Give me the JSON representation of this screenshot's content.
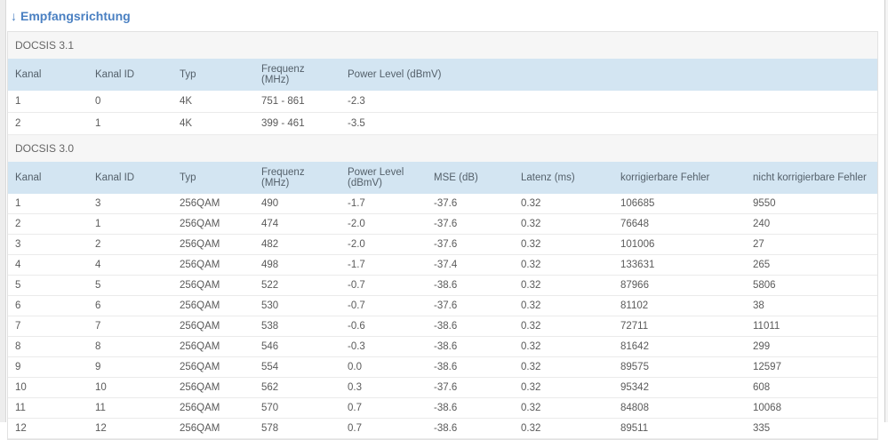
{
  "page": {
    "title_arrow": "↓",
    "title_text": "Empfangsrichtung"
  },
  "colors": {
    "accent_blue": "#4a80c2",
    "table_header_bg": "#d3e5f2",
    "section_label_bg": "#f6f6f6"
  },
  "docsis31": {
    "section_label": "DOCSIS 3.1",
    "columns": [
      "Kanal",
      "Kanal ID",
      "Typ",
      "Frequenz (MHz)",
      "Power Level (dBmV)"
    ],
    "rows": [
      [
        "1",
        "0",
        "4K",
        "751 - 861",
        "-2.3"
      ],
      [
        "2",
        "1",
        "4K",
        "399 - 461",
        "-3.5"
      ]
    ]
  },
  "docsis30": {
    "section_label": "DOCSIS 3.0",
    "columns": [
      "Kanal",
      "Kanal ID",
      "Typ",
      "Frequenz (MHz)",
      "Power Level (dBmV)",
      "MSE (dB)",
      "Latenz (ms)",
      "korrigierbare Fehler",
      "nicht korrigierbare Fehler"
    ],
    "rows": [
      [
        "1",
        "3",
        "256QAM",
        "490",
        "-1.7",
        "-37.6",
        "0.32",
        "106685",
        "9550"
      ],
      [
        "2",
        "1",
        "256QAM",
        "474",
        "-2.0",
        "-37.6",
        "0.32",
        "76648",
        "240"
      ],
      [
        "3",
        "2",
        "256QAM",
        "482",
        "-2.0",
        "-37.6",
        "0.32",
        "101006",
        "27"
      ],
      [
        "4",
        "4",
        "256QAM",
        "498",
        "-1.7",
        "-37.4",
        "0.32",
        "133631",
        "265"
      ],
      [
        "5",
        "5",
        "256QAM",
        "522",
        "-0.7",
        "-38.6",
        "0.32",
        "87966",
        "5806"
      ],
      [
        "6",
        "6",
        "256QAM",
        "530",
        "-0.7",
        "-37.6",
        "0.32",
        "81102",
        "38"
      ],
      [
        "7",
        "7",
        "256QAM",
        "538",
        "-0.6",
        "-38.6",
        "0.32",
        "72711",
        "11011"
      ],
      [
        "8",
        "8",
        "256QAM",
        "546",
        "-0.3",
        "-38.6",
        "0.32",
        "81642",
        "299"
      ],
      [
        "9",
        "9",
        "256QAM",
        "554",
        "0.0",
        "-38.6",
        "0.32",
        "89575",
        "12597"
      ],
      [
        "10",
        "10",
        "256QAM",
        "562",
        "0.3",
        "-37.6",
        "0.32",
        "95342",
        "608"
      ],
      [
        "11",
        "11",
        "256QAM",
        "570",
        "0.7",
        "-38.6",
        "0.32",
        "84808",
        "10068"
      ],
      [
        "12",
        "12",
        "256QAM",
        "578",
        "0.7",
        "-38.6",
        "0.32",
        "89511",
        "335"
      ]
    ]
  }
}
